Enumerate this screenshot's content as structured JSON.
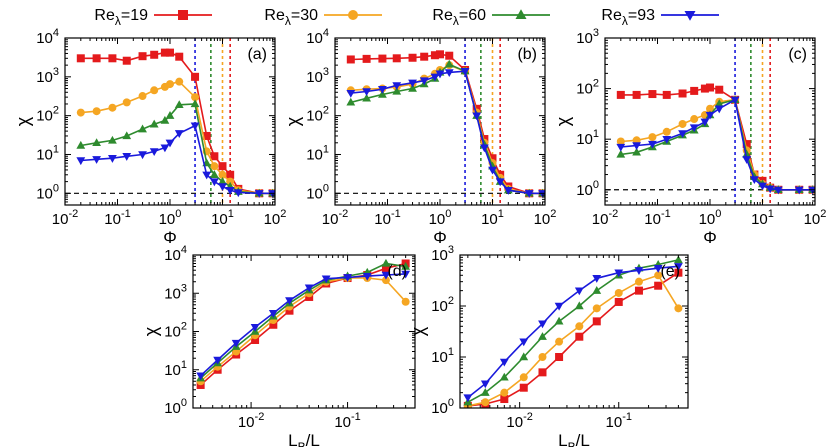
{
  "legend": {
    "entries": [
      {
        "label": "Re",
        "sub": "λ",
        "value": "=19",
        "color": "#e41a1c",
        "marker": "square"
      },
      {
        "label": "Re",
        "sub": "λ",
        "value": "=30",
        "color": "#f5a623",
        "marker": "circle"
      },
      {
        "label": "Re",
        "sub": "λ",
        "value": "=60",
        "color": "#2e8b2e",
        "marker": "triangle-up"
      },
      {
        "label": "Re",
        "sub": "λ",
        "value": "=93",
        "color": "#1a1adc",
        "marker": "triangle-down"
      }
    ]
  },
  "chart_data": [
    {
      "type": "line",
      "panel_label": "(a)",
      "xlabel": "Φ",
      "ylabel": "χ",
      "xscale": "log",
      "yscale": "log",
      "xlim": [
        0.01,
        100
      ],
      "ylim": [
        0.5,
        10000
      ],
      "x_ticks": [
        "10-2",
        "10-1",
        "100",
        "101",
        "102"
      ],
      "y_ticks": [
        "100",
        "101",
        "102",
        "103",
        "104"
      ],
      "reference_hline": 1,
      "vlines": [
        {
          "x": 3.0,
          "color": "#1a1adc"
        },
        {
          "x": 6.0,
          "color": "#2e8b2e"
        },
        {
          "x": 10.0,
          "color": "#f5a623"
        },
        {
          "x": 14.0,
          "color": "#e41a1c"
        }
      ],
      "series": [
        {
          "name": "Reλ=19",
          "marker": "square",
          "color": "#e41a1c",
          "x": [
            0.02,
            0.04,
            0.08,
            0.15,
            0.3,
            0.5,
            0.8,
            1.0,
            1.5,
            3,
            5,
            7,
            10,
            14,
            20,
            50,
            90
          ],
          "y": [
            3000,
            3000,
            3000,
            2600,
            3400,
            3700,
            4200,
            4200,
            3300,
            1000,
            30,
            9,
            5,
            3,
            1.3,
            1.0,
            1.0
          ]
        },
        {
          "name": "Reλ=30",
          "marker": "circle",
          "color": "#f5a623",
          "x": [
            0.02,
            0.04,
            0.08,
            0.15,
            0.3,
            0.5,
            0.8,
            1.0,
            1.5,
            3,
            5,
            7,
            10,
            14,
            20,
            50,
            90
          ],
          "y": [
            120,
            130,
            160,
            220,
            320,
            450,
            550,
            650,
            750,
            300,
            12,
            5,
            3,
            2,
            1.2,
            1.0,
            1.0
          ]
        },
        {
          "name": "Reλ=60",
          "marker": "triangle-up",
          "color": "#2e8b2e",
          "x": [
            0.02,
            0.04,
            0.08,
            0.15,
            0.3,
            0.5,
            0.8,
            1.0,
            1.5,
            3,
            5,
            7,
            10,
            14,
            20,
            50,
            90
          ],
          "y": [
            17,
            20,
            23,
            30,
            45,
            60,
            75,
            100,
            190,
            200,
            6,
            3,
            2,
            1.5,
            1.1,
            1.0,
            1.0
          ]
        },
        {
          "name": "Reλ=93",
          "marker": "triangle-down",
          "color": "#1a1adc",
          "x": [
            0.02,
            0.04,
            0.08,
            0.15,
            0.3,
            0.5,
            0.8,
            1.0,
            1.5,
            3,
            5,
            7,
            10,
            14,
            20,
            50,
            90
          ],
          "y": [
            7,
            7.5,
            8,
            9,
            10,
            12,
            15,
            20,
            35,
            55,
            3,
            2,
            1.5,
            1.2,
            1.05,
            1.0,
            1.0
          ]
        }
      ]
    },
    {
      "type": "line",
      "panel_label": "(b)",
      "xlabel": "Φ",
      "ylabel": "χ",
      "xscale": "log",
      "yscale": "log",
      "xlim": [
        0.01,
        100
      ],
      "ylim": [
        0.5,
        10000
      ],
      "x_ticks": [
        "10-2",
        "10-1",
        "100",
        "101",
        "102"
      ],
      "y_ticks": [
        "100",
        "101",
        "102",
        "103",
        "104"
      ],
      "reference_hline": 1,
      "vlines": [
        {
          "x": 3.0,
          "color": "#1a1adc"
        },
        {
          "x": 6.0,
          "color": "#2e8b2e"
        },
        {
          "x": 10.0,
          "color": "#f5a623"
        },
        {
          "x": 14.0,
          "color": "#e41a1c"
        }
      ],
      "series": [
        {
          "name": "Reλ=19",
          "marker": "square",
          "color": "#e41a1c",
          "x": [
            0.02,
            0.04,
            0.08,
            0.15,
            0.3,
            0.5,
            0.8,
            1.0,
            1.5,
            3,
            5,
            7,
            10,
            14,
            20,
            50,
            90
          ],
          "y": [
            2800,
            2900,
            2950,
            3000,
            3100,
            3300,
            3600,
            3800,
            3500,
            1500,
            150,
            25,
            8,
            3,
            1.5,
            1.0,
            1.0
          ]
        },
        {
          "name": "Reλ=30",
          "marker": "circle",
          "color": "#f5a623",
          "x": [
            0.02,
            0.04,
            0.08,
            0.15,
            0.3,
            0.5,
            0.8,
            1.0,
            1.5,
            3,
            5,
            7,
            10,
            14,
            20,
            50,
            90
          ],
          "y": [
            450,
            480,
            500,
            550,
            650,
            900,
            1200,
            1500,
            2000,
            1400,
            120,
            20,
            6,
            2.5,
            1.3,
            1.0,
            1.0
          ]
        },
        {
          "name": "Reλ=60",
          "marker": "triangle-up",
          "color": "#2e8b2e",
          "x": [
            0.02,
            0.04,
            0.08,
            0.15,
            0.3,
            0.5,
            0.8,
            1.0,
            1.5,
            3,
            5,
            7,
            10,
            14,
            20,
            50,
            90
          ],
          "y": [
            220,
            280,
            350,
            420,
            500,
            650,
            900,
            1300,
            2100,
            1400,
            100,
            18,
            5,
            2,
            1.2,
            1.0,
            1.0
          ]
        },
        {
          "name": "Reλ=93",
          "marker": "triangle-down",
          "color": "#1a1adc",
          "x": [
            0.02,
            0.04,
            0.08,
            0.15,
            0.3,
            0.5,
            0.8,
            1.0,
            1.5,
            3,
            5,
            7,
            10,
            14,
            20,
            50,
            90
          ],
          "y": [
            380,
            420,
            480,
            600,
            700,
            800,
            1000,
            1200,
            1300,
            1400,
            100,
            15,
            4,
            2,
            1.2,
            1.0,
            1.0
          ]
        }
      ]
    },
    {
      "type": "line",
      "panel_label": "(c)",
      "xlabel": "Φ",
      "ylabel": "χ",
      "xscale": "log",
      "yscale": "log",
      "xlim": [
        0.01,
        100
      ],
      "ylim": [
        0.5,
        1000
      ],
      "x_ticks": [
        "10-2",
        "10-1",
        "100",
        "101",
        "102"
      ],
      "y_ticks": [
        "100",
        "101",
        "102",
        "103"
      ],
      "reference_hline": 1,
      "vlines": [
        {
          "x": 3.0,
          "color": "#1a1adc"
        },
        {
          "x": 6.0,
          "color": "#2e8b2e"
        },
        {
          "x": 10.0,
          "color": "#f5a623"
        },
        {
          "x": 14.0,
          "color": "#e41a1c"
        }
      ],
      "series": [
        {
          "name": "Reλ=19",
          "marker": "square",
          "color": "#e41a1c",
          "x": [
            0.02,
            0.04,
            0.08,
            0.15,
            0.3,
            0.5,
            0.8,
            1.0,
            1.5,
            3,
            5,
            7,
            10,
            14,
            20,
            50,
            90
          ],
          "y": [
            75,
            75,
            78,
            75,
            80,
            90,
            100,
            105,
            95,
            60,
            8,
            2,
            1.5,
            1.1,
            1.0,
            1.0,
            1.0
          ]
        },
        {
          "name": "Reλ=30",
          "marker": "circle",
          "color": "#f5a623",
          "x": [
            0.02,
            0.04,
            0.08,
            0.15,
            0.3,
            0.5,
            0.8,
            1.0,
            1.5,
            3,
            5,
            7,
            10,
            14,
            20,
            50,
            90
          ],
          "y": [
            9,
            9.5,
            11,
            14,
            20,
            25,
            30,
            40,
            55,
            60,
            6,
            2,
            1.3,
            1.1,
            1.0,
            1.0,
            1.0
          ]
        },
        {
          "name": "Reλ=60",
          "marker": "triangle-up",
          "color": "#2e8b2e",
          "x": [
            0.02,
            0.04,
            0.08,
            0.15,
            0.3,
            0.5,
            0.8,
            1.0,
            1.5,
            3,
            5,
            7,
            10,
            14,
            20,
            50,
            90
          ],
          "y": [
            5,
            5.5,
            7,
            9,
            12,
            15,
            20,
            30,
            50,
            60,
            5,
            1.8,
            1.3,
            1.1,
            1.0,
            1.0,
            1.0
          ]
        },
        {
          "name": "Reλ=93",
          "marker": "triangle-down",
          "color": "#1a1adc",
          "x": [
            0.02,
            0.04,
            0.08,
            0.15,
            0.3,
            0.5,
            0.8,
            1.0,
            1.5,
            3,
            5,
            7,
            10,
            14,
            20,
            50,
            90
          ],
          "y": [
            7,
            7.5,
            8,
            10,
            13,
            17,
            22,
            30,
            40,
            60,
            4,
            1.6,
            1.2,
            1.05,
            1.0,
            1.0,
            1.0
          ]
        }
      ]
    },
    {
      "type": "line",
      "panel_label": "(d)",
      "xlabel": "LB/L",
      "ylabel": "χ",
      "xscale": "log",
      "yscale": "log",
      "xlim": [
        0.0025,
        0.5
      ],
      "ylim": [
        1,
        10000
      ],
      "x_ticks": [
        "10-2",
        "10-1"
      ],
      "y_ticks": [
        "100",
        "101",
        "102",
        "103",
        "104"
      ],
      "series": [
        {
          "name": "Reλ=19",
          "marker": "square",
          "color": "#e41a1c",
          "x": [
            0.003,
            0.0045,
            0.007,
            0.011,
            0.017,
            0.025,
            0.04,
            0.06,
            0.1,
            0.16,
            0.25,
            0.4
          ],
          "y": [
            4,
            10,
            25,
            60,
            150,
            350,
            800,
            1800,
            2500,
            3000,
            4500,
            6000
          ]
        },
        {
          "name": "Reλ=30",
          "marker": "circle",
          "color": "#f5a623",
          "x": [
            0.003,
            0.0045,
            0.007,
            0.011,
            0.017,
            0.025,
            0.04,
            0.06,
            0.1,
            0.16,
            0.25,
            0.4
          ],
          "y": [
            5,
            12,
            30,
            80,
            200,
            450,
            1000,
            2000,
            2500,
            2500,
            2200,
            600
          ]
        },
        {
          "name": "Reλ=60",
          "marker": "triangle-up",
          "color": "#2e8b2e",
          "x": [
            0.003,
            0.0045,
            0.007,
            0.011,
            0.017,
            0.025,
            0.04,
            0.06,
            0.1,
            0.16,
            0.25,
            0.4
          ],
          "y": [
            6,
            15,
            40,
            100,
            250,
            550,
            1200,
            2200,
            2800,
            3500,
            6000,
            5000
          ]
        },
        {
          "name": "Reλ=93",
          "marker": "triangle-down",
          "color": "#1a1adc",
          "x": [
            0.003,
            0.0045,
            0.007,
            0.011,
            0.017,
            0.025,
            0.04,
            0.06,
            0.1,
            0.16,
            0.25,
            0.4
          ],
          "y": [
            7,
            18,
            50,
            130,
            300,
            650,
            1400,
            2400,
            2600,
            2800,
            3000,
            3200
          ]
        }
      ]
    },
    {
      "type": "line",
      "panel_label": "(e)",
      "xlabel": "LB/L",
      "ylabel": "χ",
      "xscale": "log",
      "yscale": "log",
      "xlim": [
        0.0025,
        0.5
      ],
      "ylim": [
        1,
        1000
      ],
      "x_ticks": [
        "10-2",
        "10-1"
      ],
      "y_ticks": [
        "100",
        "101",
        "102",
        "103"
      ],
      "series": [
        {
          "name": "Reλ=19",
          "marker": "square",
          "color": "#e41a1c",
          "x": [
            0.003,
            0.0045,
            0.007,
            0.011,
            0.017,
            0.025,
            0.04,
            0.06,
            0.1,
            0.16,
            0.25,
            0.4
          ],
          "y": [
            1.1,
            1.2,
            1.5,
            2.5,
            5,
            10,
            25,
            50,
            120,
            200,
            250,
            450
          ]
        },
        {
          "name": "Reλ=30",
          "marker": "circle",
          "color": "#f5a623",
          "x": [
            0.003,
            0.0045,
            0.007,
            0.011,
            0.017,
            0.025,
            0.04,
            0.06,
            0.1,
            0.16,
            0.25,
            0.4
          ],
          "y": [
            1.1,
            1.3,
            2,
            4,
            10,
            20,
            40,
            90,
            180,
            300,
            400,
            90
          ]
        },
        {
          "name": "Reλ=60",
          "marker": "triangle-up",
          "color": "#2e8b2e",
          "x": [
            0.003,
            0.0045,
            0.007,
            0.011,
            0.017,
            0.025,
            0.04,
            0.06,
            0.1,
            0.16,
            0.25,
            0.4
          ],
          "y": [
            1.3,
            2,
            4,
            10,
            25,
            50,
            100,
            200,
            400,
            550,
            650,
            800
          ]
        },
        {
          "name": "Reλ=93",
          "marker": "triangle-down",
          "color": "#1a1adc",
          "x": [
            0.003,
            0.0045,
            0.007,
            0.011,
            0.017,
            0.025,
            0.04,
            0.06,
            0.1,
            0.16,
            0.25,
            0.4
          ],
          "y": [
            1.6,
            3,
            8,
            20,
            45,
            100,
            200,
            350,
            450,
            500,
            550,
            600
          ]
        }
      ]
    }
  ]
}
